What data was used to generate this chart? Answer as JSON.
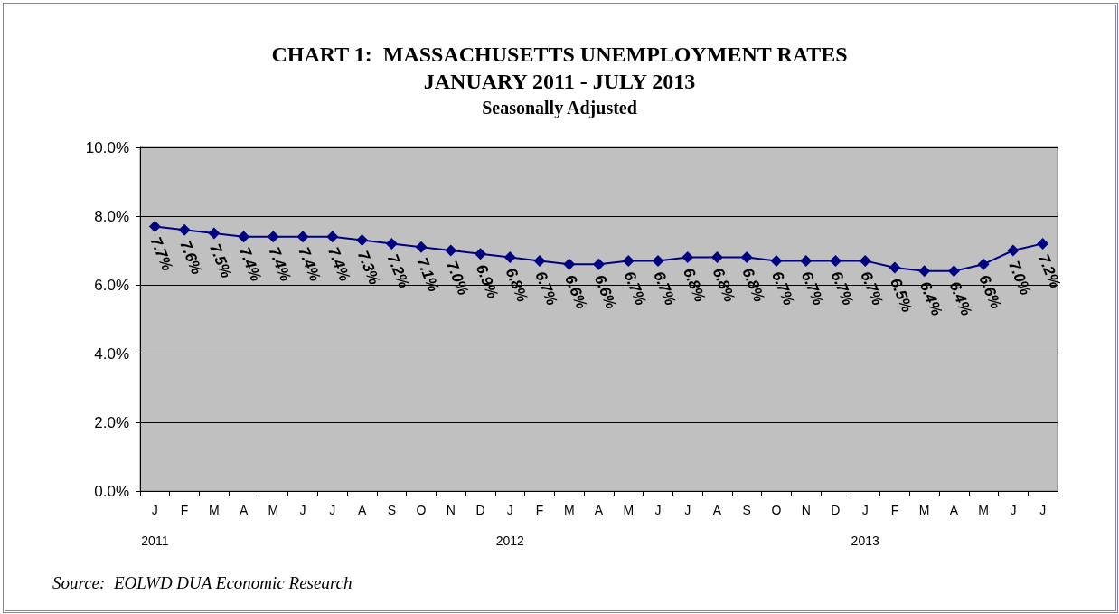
{
  "chart_data": {
    "type": "line",
    "title": "CHART 1:  MASSACHUSETTS UNEMPLOYMENT RATES\nJANUARY 2011 - JULY 2013",
    "subtitle": "Seasonally Adjusted",
    "categories": [
      "J\n\n2011",
      "F",
      "M",
      "A",
      "M",
      "J",
      "J",
      "A",
      "S",
      "O",
      "N",
      "D",
      "J\n\n2012",
      "F",
      "M",
      "A",
      "M",
      "J",
      "J",
      "A",
      "S",
      "O",
      "N",
      "D",
      "J\n\n2013",
      "F",
      "M",
      "A",
      "M",
      "J",
      "J"
    ],
    "series": [
      {
        "color": "#000080",
        "values": [
          7.7,
          7.6,
          7.5,
          7.4,
          7.4,
          7.4,
          7.4,
          7.3,
          7.2,
          7.1,
          7.0,
          6.9,
          6.8,
          6.7,
          6.6,
          6.6,
          6.7,
          6.7,
          6.8,
          6.8,
          6.8,
          6.7,
          6.7,
          6.7,
          6.7,
          6.5,
          6.4,
          6.4,
          6.6,
          7.0,
          7.2
        ],
        "value_labels": [
          "7.7%",
          "7.6%",
          "7.5%",
          "7.4%",
          "7.4%",
          "7.4%",
          "7.4%",
          "7.3%",
          "7.2%",
          "7.1%",
          "7.0%",
          "6.9%",
          "6.8%",
          "6.7%",
          "6.6%",
          "6.6%",
          "6.7%",
          "6.7%",
          "6.8%",
          "6.8%",
          "6.8%",
          "6.7%",
          "6.7%",
          "6.7%",
          "6.7%",
          "6.5%",
          "6.4%",
          "6.4%",
          "6.6%",
          "7.0%",
          "7.2%"
        ]
      }
    ],
    "ylim": [
      0,
      10
    ],
    "yticks": [
      {
        "value": 0,
        "label": "0.0%"
      },
      {
        "value": 2,
        "label": "2.0%"
      },
      {
        "value": 4,
        "label": "4.0%"
      },
      {
        "value": 6,
        "label": "6.0%"
      },
      {
        "value": 8,
        "label": "8.0%"
      },
      {
        "value": 10,
        "label": "10.0%"
      }
    ],
    "grid": "y",
    "marker": "diamond",
    "line_style": "solid",
    "annotations": [
      "Source:  EOLWD DUA Economic Research"
    ]
  }
}
